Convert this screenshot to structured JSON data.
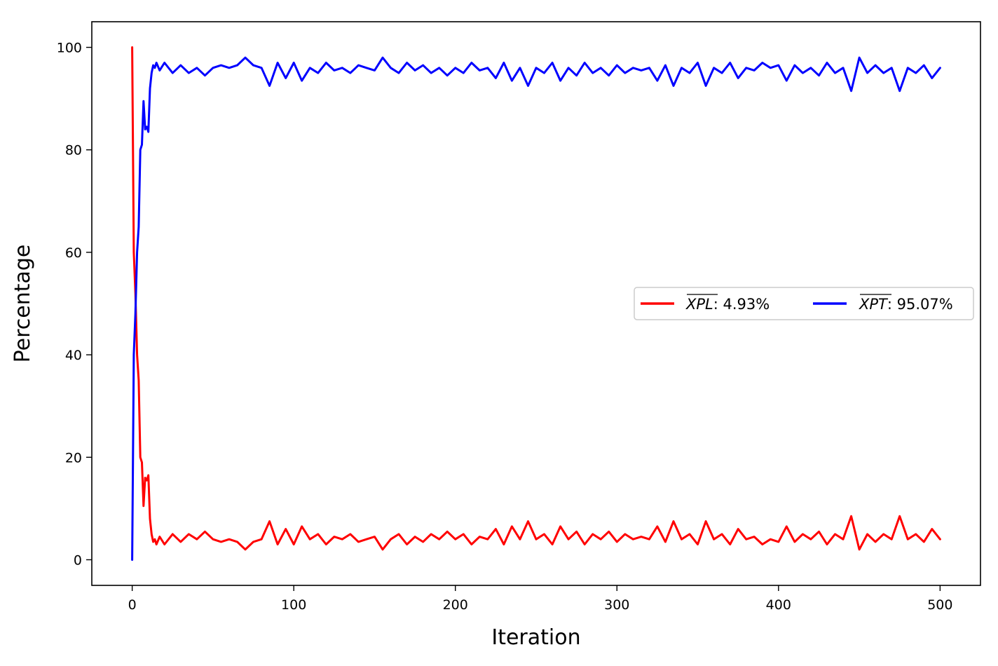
{
  "chart_data": {
    "type": "line",
    "title": "",
    "xlabel": "Iteration",
    "ylabel": "Percentage",
    "xlim": [
      -25,
      525
    ],
    "ylim": [
      -5,
      105
    ],
    "xticks": [
      0,
      100,
      200,
      300,
      400,
      500
    ],
    "yticks": [
      0,
      20,
      40,
      60,
      80,
      100
    ],
    "grid": false,
    "legend_placement": "center-right",
    "series": [
      {
        "name": "XPL: 4.93%",
        "legend_symbol": "XPL",
        "legend_value": ": 4.93%",
        "color": "#ff0000",
        "x": [
          0,
          1,
          2,
          3,
          4,
          5,
          6,
          7,
          8,
          9,
          10,
          11,
          12,
          13,
          14,
          15,
          17,
          20,
          25,
          30,
          35,
          40,
          45,
          50,
          55,
          60,
          65,
          70,
          75,
          80,
          85,
          90,
          95,
          100,
          105,
          110,
          115,
          120,
          125,
          130,
          135,
          140,
          145,
          150,
          155,
          160,
          165,
          170,
          175,
          180,
          185,
          190,
          195,
          200,
          205,
          210,
          215,
          220,
          225,
          230,
          235,
          240,
          245,
          250,
          255,
          260,
          265,
          270,
          275,
          280,
          285,
          290,
          295,
          300,
          305,
          310,
          315,
          320,
          325,
          330,
          335,
          340,
          345,
          350,
          355,
          360,
          365,
          370,
          375,
          380,
          385,
          390,
          395,
          400,
          405,
          410,
          415,
          420,
          425,
          430,
          435,
          440,
          445,
          450,
          455,
          460,
          465,
          470,
          475,
          480,
          485,
          490,
          495,
          500
        ],
        "y": [
          100,
          60,
          52,
          40,
          35,
          20,
          19,
          10.5,
          16,
          15.5,
          16.5,
          8,
          5,
          3.5,
          4,
          3,
          4.5,
          3,
          5,
          3.5,
          5,
          4,
          5.5,
          4,
          3.5,
          4,
          3.5,
          2,
          3.5,
          4,
          7.5,
          3,
          6,
          3,
          6.5,
          4,
          5,
          3,
          4.5,
          4,
          5,
          3.5,
          4,
          4.5,
          2,
          4,
          5,
          3,
          4.5,
          3.5,
          5,
          4,
          5.5,
          4,
          5,
          3,
          4.5,
          4,
          6,
          3,
          6.5,
          4,
          7.5,
          4,
          5,
          3,
          6.5,
          4,
          5.5,
          3,
          5,
          4,
          5.5,
          3.5,
          5,
          4,
          4.5,
          4,
          6.5,
          3.5,
          7.5,
          4,
          5,
          3,
          7.5,
          4,
          5,
          3,
          6,
          4,
          4.5,
          3,
          4,
          3.5,
          6.5,
          3.5,
          5,
          4,
          5.5,
          3,
          5,
          4,
          8.5,
          2,
          5,
          3.5,
          5,
          4,
          8.5,
          4,
          5,
          3.5,
          6,
          4
        ]
      },
      {
        "name": "XPT: 95.07%",
        "legend_symbol": "XPT",
        "legend_value": ": 95.07%",
        "color": "#0000ff",
        "x": [
          0,
          1,
          2,
          3,
          4,
          5,
          6,
          7,
          8,
          9,
          10,
          11,
          12,
          13,
          14,
          15,
          17,
          20,
          25,
          30,
          35,
          40,
          45,
          50,
          55,
          60,
          65,
          70,
          75,
          80,
          85,
          90,
          95,
          100,
          105,
          110,
          115,
          120,
          125,
          130,
          135,
          140,
          145,
          150,
          155,
          160,
          165,
          170,
          175,
          180,
          185,
          190,
          195,
          200,
          205,
          210,
          215,
          220,
          225,
          230,
          235,
          240,
          245,
          250,
          255,
          260,
          265,
          270,
          275,
          280,
          285,
          290,
          295,
          300,
          305,
          310,
          315,
          320,
          325,
          330,
          335,
          340,
          345,
          350,
          355,
          360,
          365,
          370,
          375,
          380,
          385,
          390,
          395,
          400,
          405,
          410,
          415,
          420,
          425,
          430,
          435,
          440,
          445,
          450,
          455,
          460,
          465,
          470,
          475,
          480,
          485,
          490,
          495,
          500
        ],
        "y": [
          0,
          40,
          48,
          60,
          65,
          80,
          81,
          89.5,
          84,
          84.5,
          83.5,
          92,
          95,
          96.5,
          96,
          97,
          95.5,
          97,
          95,
          96.5,
          95,
          96,
          94.5,
          96,
          96.5,
          96,
          96.5,
          98,
          96.5,
          96,
          92.5,
          97,
          94,
          97,
          93.5,
          96,
          95,
          97,
          95.5,
          96,
          95,
          96.5,
          96,
          95.5,
          98,
          96,
          95,
          97,
          95.5,
          96.5,
          95,
          96,
          94.5,
          96,
          95,
          97,
          95.5,
          96,
          94,
          97,
          93.5,
          96,
          92.5,
          96,
          95,
          97,
          93.5,
          96,
          94.5,
          97,
          95,
          96,
          94.5,
          96.5,
          95,
          96,
          95.5,
          96,
          93.5,
          96.5,
          92.5,
          96,
          95,
          97,
          92.5,
          96,
          95,
          97,
          94,
          96,
          95.5,
          97,
          96,
          96.5,
          93.5,
          96.5,
          95,
          96,
          94.5,
          97,
          95,
          96,
          91.5,
          98,
          95,
          96.5,
          95,
          96,
          91.5,
          96,
          95,
          96.5,
          94,
          96
        ]
      }
    ]
  }
}
